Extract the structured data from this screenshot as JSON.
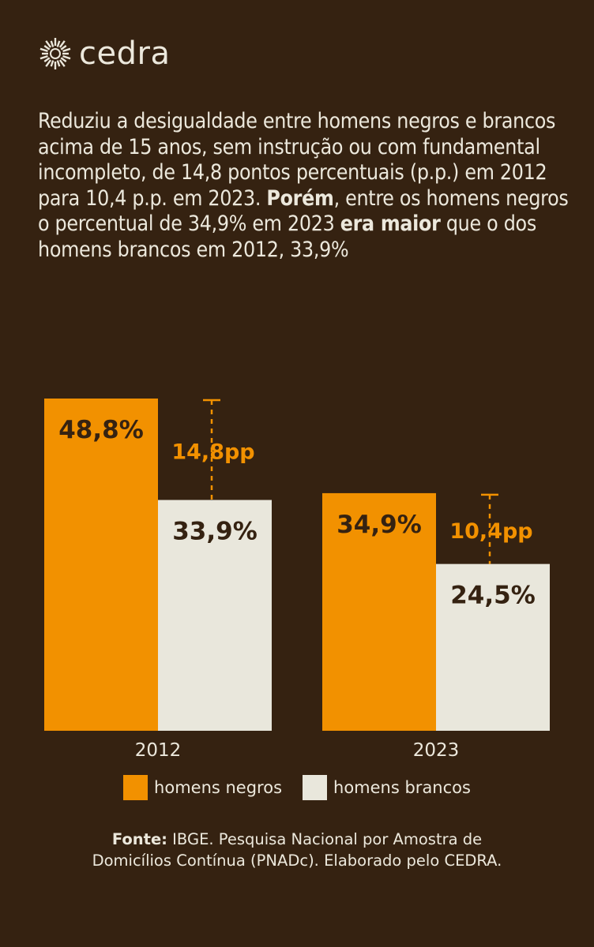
{
  "brand": {
    "name": "cedra",
    "logo_icon": "sunburst-icon"
  },
  "intro": {
    "p1": "Reduziu a desigualdade entre homens negros e brancos acima de 15 anos, sem instrução ou com fundamental incompleto, de 14,8 pontos percentuais (p.p.) em 2012 para 10,4 p.p. em 2023. ",
    "b1": "Porém",
    "p2": ", entre os homens negros o percentual de 34,9%  em 2023 ",
    "b2": "era maior",
    "p3": " que o dos homens brancos em 2012, 33,9%"
  },
  "colors": {
    "background": "#352211",
    "negros": "#f29100",
    "brancos": "#e9e7dc",
    "text_light": "#ece8dc",
    "text_dark": "#352211",
    "gap": "#f29100"
  },
  "chart_data": {
    "type": "bar",
    "categories": [
      "2012",
      "2023"
    ],
    "series": [
      {
        "name": "homens negros",
        "values": [
          48.8,
          34.9
        ],
        "labels": [
          "48,8%",
          "34,9%"
        ]
      },
      {
        "name": "homens brancos",
        "values": [
          33.9,
          24.5
        ],
        "labels": [
          "33,9%",
          "24,5%"
        ]
      }
    ],
    "gaps": [
      {
        "category": "2012",
        "value": 14.8,
        "label": "14,8pp"
      },
      {
        "category": "2023",
        "value": 10.4,
        "label": "10,4pp"
      }
    ],
    "unit": "%",
    "ylim": [
      0,
      48.8
    ],
    "grid": false,
    "legend_position": "bottom-center"
  },
  "legend": [
    {
      "label": "homens negros"
    },
    {
      "label": "homens brancos"
    }
  ],
  "source": {
    "prefix": "Fonte:",
    "line1": " IBGE. Pesquisa Nacional por Amostra de",
    "line2": "Domicílios Contínua (PNADc). Elaborado pelo CEDRA."
  }
}
